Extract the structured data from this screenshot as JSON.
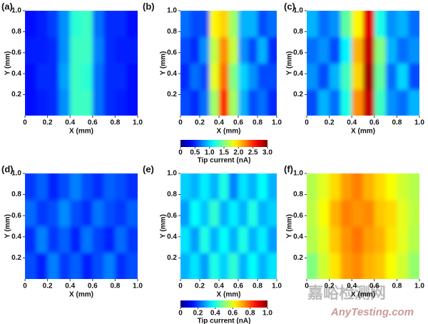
{
  "chart_data": [
    {
      "type": "heatmap",
      "panel_label": "(a)",
      "xlabel": "X (mm)",
      "ylabel": "Y (mm)",
      "xlim": [
        0,
        1
      ],
      "ylim": [
        0,
        1
      ],
      "zlim": [
        0,
        3
      ],
      "xticks": [
        0,
        0.2,
        0.4,
        0.6,
        0.8,
        {
          "value": 1,
          "label": "1.0"
        }
      ],
      "yticks": [
        0.2,
        0.4,
        0.6,
        0.8,
        {
          "value": 1,
          "label": "1.0"
        }
      ],
      "z": [
        [
          0.4,
          0.45,
          0.5,
          0.8,
          1.3,
          1.3,
          0.7,
          0.5,
          0.45,
          0.4
        ],
        [
          0.4,
          0.5,
          0.5,
          0.85,
          1.3,
          1.25,
          0.7,
          0.5,
          0.5,
          0.4
        ],
        [
          0.45,
          0.45,
          0.5,
          0.8,
          1.3,
          1.3,
          0.75,
          0.5,
          0.45,
          0.45
        ],
        [
          0.4,
          0.45,
          0.55,
          0.8,
          1.25,
          1.3,
          0.7,
          0.5,
          0.5,
          0.4
        ]
      ]
    },
    {
      "type": "heatmap",
      "panel_label": "(b)",
      "xlabel": "X (mm)",
      "ylabel": "Y (mm)",
      "xlim": [
        0,
        1
      ],
      "ylim": [
        0,
        1
      ],
      "zlim": [
        0,
        3
      ],
      "xticks": [
        0,
        0.2,
        0.4,
        0.6,
        0.8,
        {
          "value": 1,
          "label": "1.0"
        }
      ],
      "yticks": [
        0.2,
        0.4,
        0.6,
        0.8,
        {
          "value": 1,
          "label": "1.0"
        }
      ],
      "z": [
        [
          0.6,
          0.5,
          0.7,
          1.6,
          2.5,
          1.6,
          0.9,
          0.6,
          0.7,
          0.5
        ],
        [
          0.5,
          0.7,
          0.6,
          1.8,
          2.3,
          1.5,
          1.0,
          0.8,
          0.6,
          0.6
        ],
        [
          0.6,
          0.5,
          0.8,
          1.7,
          2.2,
          1.7,
          0.8,
          0.6,
          0.9,
          0.5
        ],
        [
          0.7,
          0.6,
          0.6,
          1.9,
          2.0,
          1.6,
          0.9,
          0.9,
          0.6,
          0.7
        ]
      ],
      "colorbar": {
        "label": "Tip current (nA)",
        "ticks": [
          0,
          0.5,
          {
            "value": 1,
            "label": "1.0"
          },
          1.5,
          {
            "value": 2,
            "label": "2.0"
          },
          2.5,
          {
            "value": 3,
            "label": "3.0"
          }
        ]
      }
    },
    {
      "type": "heatmap",
      "panel_label": "(c)",
      "xlabel": "X (mm)",
      "ylabel": "Y (mm)",
      "xlim": [
        0,
        1
      ],
      "ylim": [
        0,
        1
      ],
      "zlim": [
        0,
        3
      ],
      "xticks": [
        0,
        0.2,
        0.4,
        0.6,
        0.8,
        {
          "value": 1,
          "label": "1.0"
        }
      ],
      "yticks": [
        0.2,
        0.4,
        0.6,
        0.8,
        {
          "value": 1,
          "label": "1.0"
        }
      ],
      "z": [
        [
          0.6,
          0.9,
          0.7,
          1.2,
          2.2,
          2.8,
          1.3,
          0.8,
          0.7,
          0.9
        ],
        [
          0.8,
          0.6,
          0.9,
          1.3,
          2.0,
          2.9,
          1.4,
          0.7,
          1.0,
          0.6
        ],
        [
          0.7,
          0.8,
          0.6,
          1.1,
          2.1,
          2.8,
          1.5,
          0.9,
          0.7,
          0.8
        ],
        [
          0.9,
          0.7,
          0.8,
          1.4,
          1.9,
          2.7,
          1.2,
          0.8,
          0.9,
          0.7
        ]
      ]
    },
    {
      "type": "heatmap",
      "panel_label": "(d)",
      "xlabel": "X (mm)",
      "ylabel": "Y (mm)",
      "xlim": [
        0,
        1
      ],
      "ylim": [
        0,
        1
      ],
      "zlim": [
        0,
        1
      ],
      "xticks": [
        0,
        0.2,
        0.4,
        0.6,
        0.8,
        {
          "value": 1,
          "label": "1.0"
        }
      ],
      "yticks": [
        0.2,
        0.4,
        0.6,
        0.8,
        {
          "value": 1,
          "label": "1.0"
        }
      ],
      "z": [
        [
          0.2,
          0.15,
          0.25,
          0.18,
          0.22,
          0.15,
          0.2,
          0.25,
          0.17,
          0.2
        ],
        [
          0.17,
          0.25,
          0.18,
          0.22,
          0.16,
          0.24,
          0.19,
          0.16,
          0.23,
          0.18
        ],
        [
          0.23,
          0.18,
          0.2,
          0.26,
          0.2,
          0.17,
          0.24,
          0.2,
          0.18,
          0.22
        ],
        [
          0.18,
          0.22,
          0.16,
          0.2,
          0.25,
          0.2,
          0.17,
          0.22,
          0.2,
          0.17
        ]
      ]
    },
    {
      "type": "heatmap",
      "panel_label": "(e)",
      "xlabel": "X (mm)",
      "ylabel": "Y (mm)",
      "xlim": [
        0,
        1
      ],
      "ylim": [
        0,
        1
      ],
      "zlim": [
        0,
        1
      ],
      "xticks": [
        0,
        0.2,
        0.4,
        0.6,
        0.8,
        {
          "value": 1,
          "label": "1.0"
        }
      ],
      "yticks": [
        0.2,
        0.4,
        0.6,
        0.8,
        {
          "value": 1,
          "label": "1.0"
        }
      ],
      "z": [
        [
          0.3,
          0.35,
          0.28,
          0.4,
          0.33,
          0.42,
          0.3,
          0.38,
          0.3,
          0.35
        ],
        [
          0.35,
          0.28,
          0.4,
          0.3,
          0.38,
          0.3,
          0.4,
          0.3,
          0.36,
          0.28
        ],
        [
          0.28,
          0.38,
          0.32,
          0.42,
          0.3,
          0.36,
          0.3,
          0.4,
          0.3,
          0.33
        ],
        [
          0.33,
          0.3,
          0.36,
          0.3,
          0.4,
          0.25,
          0.35,
          0.3,
          0.38,
          0.3
        ]
      ],
      "colorbar": {
        "label": "Tip current (nA)",
        "ticks": [
          0,
          0.2,
          0.4,
          0.6,
          0.8,
          {
            "value": 1,
            "label": "1.0"
          }
        ]
      }
    },
    {
      "type": "heatmap",
      "panel_label": "(f)",
      "xlabel": "X (mm)",
      "ylabel": "Y (mm)",
      "xlim": [
        0,
        1
      ],
      "ylim": [
        0,
        1
      ],
      "zlim": [
        0,
        1
      ],
      "xticks": [
        0,
        0.2,
        0.4,
        0.6,
        0.8,
        {
          "value": 1,
          "label": "1.0"
        }
      ],
      "yticks": [
        0.2,
        0.4,
        0.6,
        0.8,
        {
          "value": 1,
          "label": "1.0"
        }
      ],
      "z": [
        [
          0.5,
          0.58,
          0.65,
          0.72,
          0.74,
          0.7,
          0.68,
          0.62,
          0.58,
          0.52
        ],
        [
          0.55,
          0.6,
          0.68,
          0.73,
          0.76,
          0.72,
          0.7,
          0.65,
          0.6,
          0.55
        ],
        [
          0.56,
          0.62,
          0.7,
          0.75,
          0.73,
          0.74,
          0.68,
          0.66,
          0.6,
          0.56
        ],
        [
          0.55,
          0.6,
          0.66,
          0.72,
          0.75,
          0.7,
          0.66,
          0.62,
          0.58,
          0.55
        ]
      ]
    }
  ],
  "watermark": {
    "cn": "嘉峪检测网",
    "en": "AnyTesting.com"
  }
}
